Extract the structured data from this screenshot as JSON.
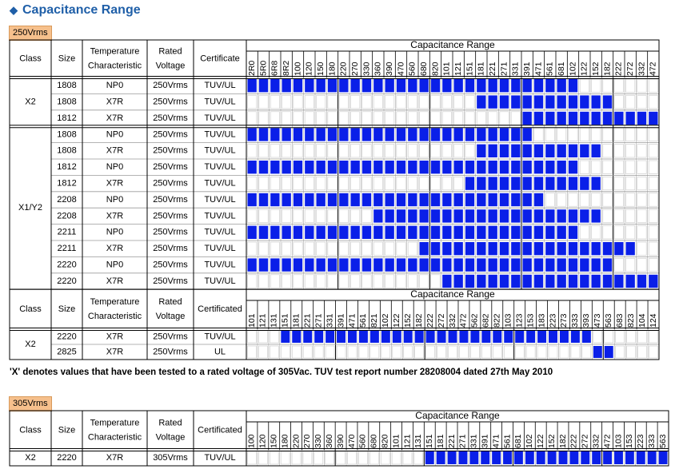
{
  "title": "Capacitance Range",
  "note": "'X' denotes values that have been tested to a rated voltage of 305Vac. TUV test report number 28208004 dated 27th May 2010",
  "colors": {
    "fill": "#0a1fe8",
    "empty": "#ffffff",
    "grid": "#9a9a9a",
    "title": "#1f5fa8",
    "badge": "#f6c08c"
  },
  "headers": {
    "class": "Class",
    "size": "Size",
    "temp1": "Temperature",
    "temp2": "Characteristic",
    "rated1": "Rated",
    "rated2": "Voltage",
    "cert_a": "Certificate",
    "cert_b": "Certificated",
    "cap_range": "Capacitance Range"
  },
  "tables": [
    {
      "id": "t250a",
      "voltage_label": "250Vrms",
      "cert_header": "cert_a",
      "columns": [
        "2R0",
        "5R0",
        "6R8",
        "8R2",
        "100",
        "120",
        "150",
        "180",
        "220",
        "270",
        "330",
        "360",
        "390",
        "470",
        "560",
        "680",
        "820",
        "101",
        "121",
        "151",
        "181",
        "221",
        "271",
        "331",
        "391",
        "471",
        "561",
        "681",
        "102",
        "122",
        "152",
        "182",
        "222",
        "272",
        "332",
        "472"
      ],
      "groups": [
        {
          "class": "X2",
          "rows": [
            {
              "size": "1808",
              "temp": "NP0",
              "voltage": "250Vrms",
              "cert": "TUV/UL",
              "start": 0,
              "end": 28
            },
            {
              "size": "1808",
              "temp": "X7R",
              "voltage": "250Vrms",
              "cert": "TUV/UL",
              "start": 20,
              "end": 31
            },
            {
              "size": "1812",
              "temp": "X7R",
              "voltage": "250Vrms",
              "cert": "TUV/UL",
              "start": 24,
              "end": 35
            }
          ]
        },
        {
          "class": "X1/Y2",
          "rows": [
            {
              "size": "1808",
              "temp": "NP0",
              "voltage": "250Vrms",
              "cert": "TUV/UL",
              "start": 0,
              "end": 24
            },
            {
              "size": "1808",
              "temp": "X7R",
              "voltage": "250Vrms",
              "cert": "TUV/UL",
              "start": 20,
              "end": 30
            },
            {
              "size": "1812",
              "temp": "NP0",
              "voltage": "250Vrms",
              "cert": "TUV/UL",
              "start": 0,
              "end": 28
            },
            {
              "size": "1812",
              "temp": "X7R",
              "voltage": "250Vrms",
              "cert": "TUV/UL",
              "start": 19,
              "end": 30
            },
            {
              "size": "2208",
              "temp": "NP0",
              "voltage": "250Vrms",
              "cert": "TUV/UL",
              "start": 0,
              "end": 25
            },
            {
              "size": "2208",
              "temp": "X7R",
              "voltage": "250Vrms",
              "cert": "TUV/UL",
              "start": 11,
              "end": 30
            },
            {
              "size": "2211",
              "temp": "NP0",
              "voltage": "250Vrms",
              "cert": "TUV/UL",
              "start": 0,
              "end": 28
            },
            {
              "size": "2211",
              "temp": "X7R",
              "voltage": "250Vrms",
              "cert": "TUV/UL",
              "start": 15,
              "end": 33
            },
            {
              "size": "2220",
              "temp": "NP0",
              "voltage": "250Vrms",
              "cert": "TUV/UL",
              "start": 0,
              "end": 31
            },
            {
              "size": "2220",
              "temp": "X7R",
              "voltage": "250Vrms",
              "cert": "TUV/UL",
              "start": 17,
              "end": 35
            }
          ]
        }
      ]
    },
    {
      "id": "t250b",
      "columns": [
        "101",
        "121",
        "131",
        "151",
        "181",
        "221",
        "271",
        "331",
        "391",
        "471",
        "561",
        "821",
        "102",
        "122",
        "152",
        "182",
        "222",
        "272",
        "332",
        "472",
        "562",
        "682",
        "822",
        "103",
        "123",
        "153",
        "183",
        "223",
        "273",
        "333",
        "393",
        "473",
        "563",
        "683",
        "823",
        "104",
        "124"
      ],
      "groups": [
        {
          "class": "X2",
          "rows": [
            {
              "size": "2220",
              "temp": "X7R",
              "voltage": "250Vrms",
              "cert": "TUV/UL",
              "start": 3,
              "end": 30
            },
            {
              "size": "2825",
              "temp": "X7R",
              "voltage": "250Vrms",
              "cert": "UL",
              "start": 31,
              "end": 32
            }
          ]
        }
      ]
    },
    {
      "id": "t305",
      "voltage_label": "305Vrms",
      "columns": [
        "100",
        "120",
        "150",
        "180",
        "220",
        "270",
        "330",
        "360",
        "390",
        "470",
        "560",
        "680",
        "820",
        "101",
        "121",
        "131",
        "151",
        "181",
        "221",
        "271",
        "331",
        "391",
        "471",
        "561",
        "681",
        "102",
        "122",
        "152",
        "182",
        "222",
        "272",
        "332",
        "472",
        "103",
        "153",
        "223",
        "333",
        "563"
      ],
      "groups": [
        {
          "class": "X2",
          "rows": [
            {
              "size": "2220",
              "temp": "X7R",
              "voltage": "305Vrms",
              "cert": "TUV/UL",
              "start": 16,
              "end": 37
            }
          ]
        }
      ]
    }
  ]
}
